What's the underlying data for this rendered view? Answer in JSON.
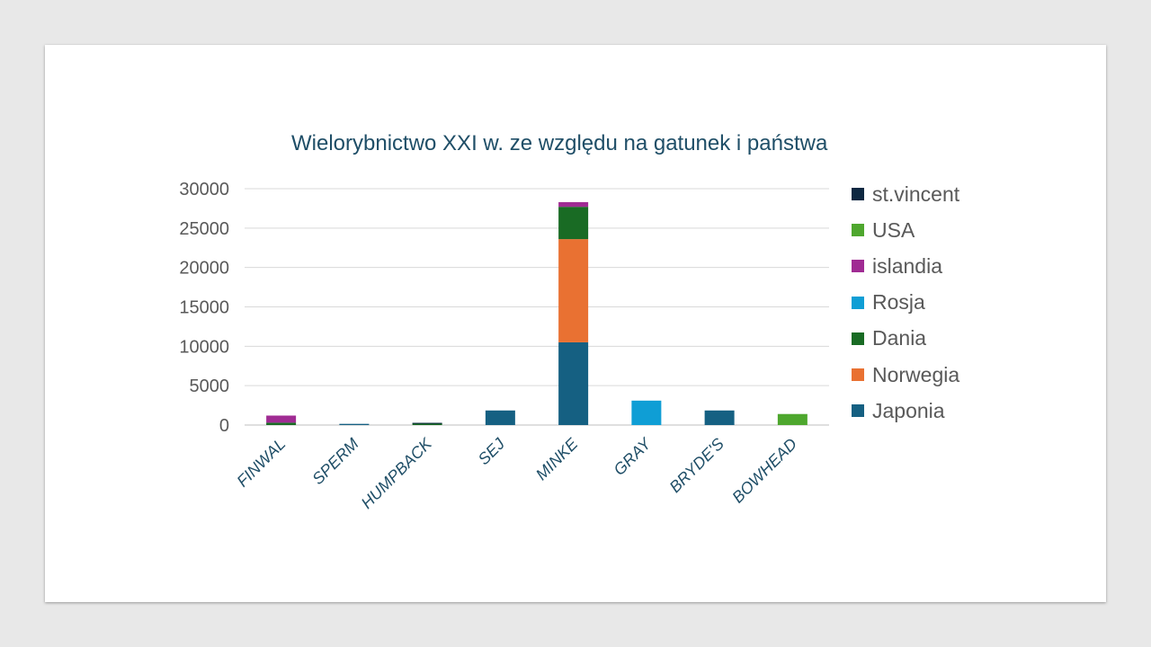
{
  "chart_data": {
    "type": "bar",
    "stacked": true,
    "title": "Wielorybnictwo XXI w. ze względu na gatunek i państwa",
    "categories": [
      "FINWAL",
      "SPERM",
      "HUMPBACK",
      "SEJ",
      "MINKE",
      "GRAY",
      "BRYDE'S",
      "BOWHEAD"
    ],
    "ylim": [
      0,
      30000
    ],
    "yticks": [
      0,
      5000,
      10000,
      15000,
      20000,
      25000,
      30000
    ],
    "grid": true,
    "legend_position": "right",
    "series": [
      {
        "name": "Japonia",
        "color": "#156082",
        "values": [
          0,
          150,
          0,
          1850,
          10500,
          0,
          1850,
          0
        ]
      },
      {
        "name": "Norwegia",
        "color": "#e97132",
        "values": [
          0,
          0,
          0,
          0,
          13100,
          0,
          0,
          0
        ]
      },
      {
        "name": "Dania",
        "color": "#196b24",
        "values": [
          300,
          0,
          250,
          0,
          4100,
          0,
          0,
          0
        ]
      },
      {
        "name": "Rosja",
        "color": "#0f9ed5",
        "values": [
          0,
          0,
          0,
          0,
          0,
          3100,
          0,
          0
        ]
      },
      {
        "name": "islandia",
        "color": "#a02b93",
        "values": [
          900,
          0,
          0,
          0,
          600,
          0,
          0,
          0
        ]
      },
      {
        "name": "USA",
        "color": "#4ea72e",
        "values": [
          0,
          0,
          0,
          0,
          0,
          0,
          0,
          1400
        ]
      },
      {
        "name": "st.vincent",
        "color": "#0e2841",
        "values": [
          0,
          0,
          30,
          0,
          0,
          0,
          0,
          0
        ]
      }
    ]
  },
  "legend_order": [
    "st.vincent",
    "USA",
    "islandia",
    "Rosja",
    "Dania",
    "Norwegia",
    "Japonia"
  ]
}
